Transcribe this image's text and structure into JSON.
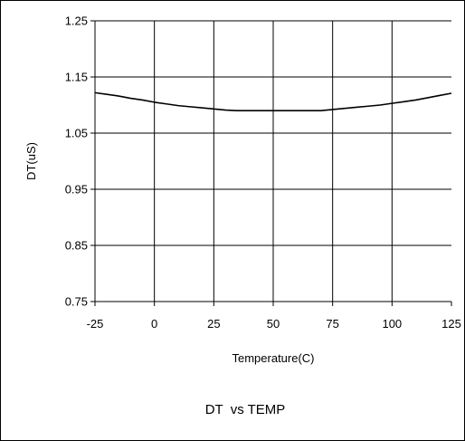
{
  "chart_data": {
    "type": "line",
    "title": "DT  vs TEMP",
    "xlabel": "Temperature(C)",
    "ylabel": "DT(uS)",
    "xlim": [
      -25,
      125
    ],
    "ylim": [
      0.75,
      1.25
    ],
    "x_ticks": [
      -25,
      0,
      25,
      50,
      75,
      100,
      125
    ],
    "x_tick_labels": [
      "-25",
      "0",
      "25",
      "50",
      "75",
      "100",
      "125"
    ],
    "y_ticks": [
      0.75,
      0.85,
      0.95,
      1.05,
      1.15,
      1.25
    ],
    "y_tick_labels": [
      "0.75",
      "0.85",
      "0.95",
      "1.05",
      "1.15",
      "1.25"
    ],
    "grid": true,
    "legend": "none",
    "series": [
      {
        "color": "#000000",
        "x": [
          -25,
          -20,
          -15,
          -10,
          -5,
          0,
          5,
          10,
          15,
          20,
          25,
          30,
          35,
          40,
          45,
          50,
          55,
          60,
          65,
          70,
          75,
          80,
          85,
          90,
          95,
          100,
          105,
          110,
          115,
          120,
          125
        ],
        "y": [
          1.122,
          1.119,
          1.116,
          1.112,
          1.109,
          1.105,
          1.102,
          1.099,
          1.097,
          1.095,
          1.093,
          1.091,
          1.09,
          1.09,
          1.09,
          1.09,
          1.09,
          1.09,
          1.09,
          1.09,
          1.092,
          1.094,
          1.096,
          1.098,
          1.1,
          1.103,
          1.106,
          1.109,
          1.113,
          1.117,
          1.121
        ]
      }
    ]
  }
}
